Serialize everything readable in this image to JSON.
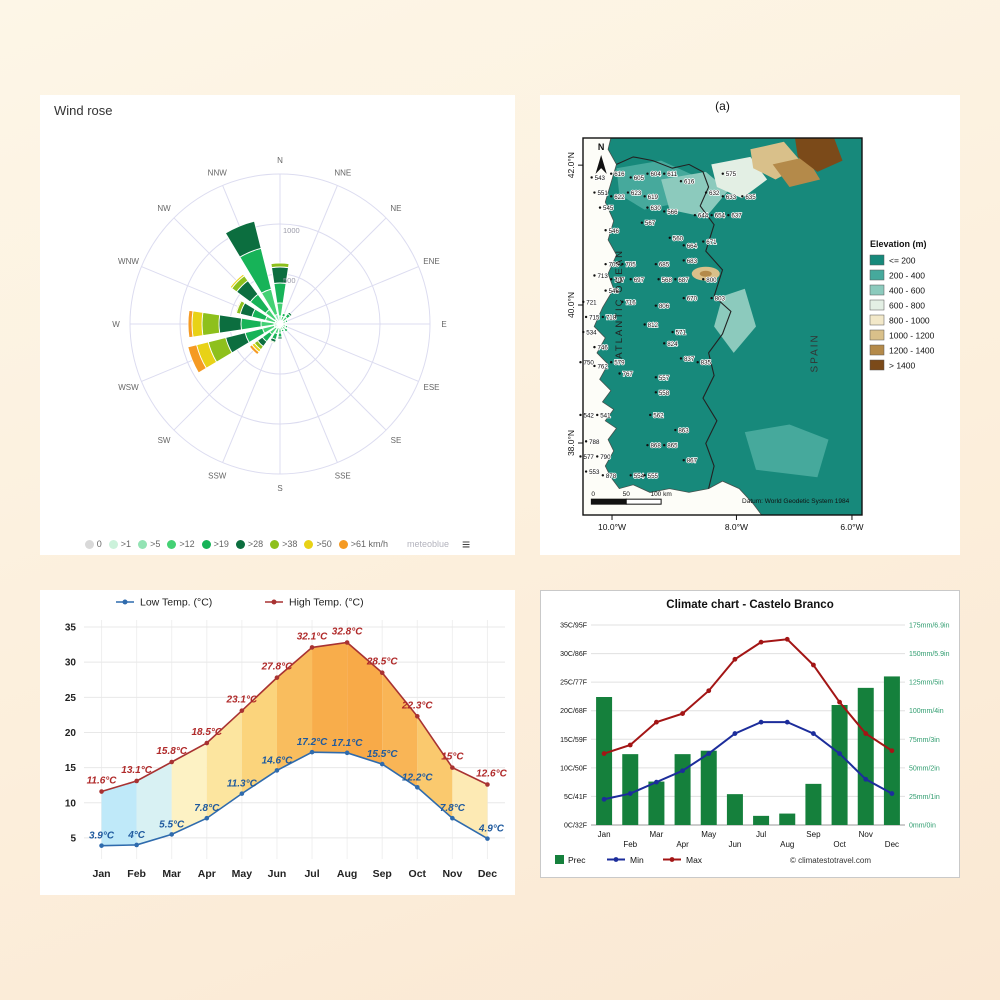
{
  "background": {
    "top": "#fdf6e7",
    "bottom": "#fae8d3"
  },
  "chart_data": [
    {
      "type": "wind-rose",
      "title": "Wind rose",
      "watermark": "meteoblue",
      "menu_icon": "≡",
      "unit": "km/h",
      "directions": [
        "N",
        "NNE",
        "NE",
        "ENE",
        "E",
        "ESE",
        "SE",
        "SSE",
        "S",
        "SSW",
        "SW",
        "WSW",
        "W",
        "WNW",
        "NW",
        "NNW"
      ],
      "rings": [
        500,
        1000
      ],
      "ring_max": 1500,
      "grid_color": "#dcdcf0",
      "speed_classes": [
        {
          "label": "0",
          "color": "#d9d9d9"
        },
        {
          "label": ">1",
          "color": "#ccf2db"
        },
        {
          "label": ">5",
          "color": "#93e3b4"
        },
        {
          "label": ">12",
          "color": "#44d174"
        },
        {
          "label": ">19",
          "color": "#17b358"
        },
        {
          "label": ">28",
          "color": "#0c6e3f"
        },
        {
          "label": ">38",
          "color": "#8ec01c"
        },
        {
          "label": ">50",
          "color": "#e8d216"
        },
        {
          "label": ">61",
          "color": "#f59a23"
        }
      ],
      "petals": [
        {
          "dir": "N",
          "values": [
            0,
            20,
            60,
            130,
            200,
            160,
            40,
            0,
            0
          ]
        },
        {
          "dir": "NNE",
          "values": [
            0,
            10,
            30,
            40,
            30,
            0,
            0,
            0,
            0
          ]
        },
        {
          "dir": "NE",
          "values": [
            0,
            10,
            30,
            50,
            40,
            20,
            0,
            0,
            0
          ]
        },
        {
          "dir": "ENE",
          "values": [
            0,
            10,
            20,
            30,
            20,
            0,
            0,
            0,
            0
          ]
        },
        {
          "dir": "E",
          "values": [
            0,
            10,
            20,
            20,
            10,
            0,
            0,
            0,
            0
          ]
        },
        {
          "dir": "ESE",
          "values": [
            0,
            10,
            20,
            30,
            20,
            0,
            0,
            0,
            0
          ]
        },
        {
          "dir": "SE",
          "values": [
            0,
            10,
            20,
            40,
            30,
            0,
            0,
            0,
            0
          ]
        },
        {
          "dir": "SSE",
          "values": [
            0,
            10,
            20,
            30,
            20,
            0,
            0,
            0,
            0
          ]
        },
        {
          "dir": "S",
          "values": [
            0,
            10,
            30,
            50,
            40,
            20,
            0,
            0,
            0
          ]
        },
        {
          "dir": "SSW",
          "values": [
            0,
            10,
            30,
            60,
            60,
            30,
            10,
            0,
            0
          ]
        },
        {
          "dir": "SW",
          "values": [
            0,
            10,
            40,
            80,
            90,
            60,
            40,
            30,
            30
          ]
        },
        {
          "dir": "WSW",
          "values": [
            0,
            10,
            50,
            120,
            180,
            200,
            180,
            120,
            90
          ]
        },
        {
          "dir": "W",
          "values": [
            0,
            10,
            50,
            130,
            200,
            220,
            170,
            100,
            40
          ]
        },
        {
          "dir": "WNW",
          "values": [
            0,
            10,
            40,
            100,
            140,
            120,
            40,
            10,
            0
          ]
        },
        {
          "dir": "NW",
          "values": [
            0,
            10,
            50,
            120,
            190,
            170,
            60,
            20,
            0
          ]
        },
        {
          "dir": "NNW",
          "values": [
            0,
            20,
            80,
            260,
            420,
            280,
            0,
            0,
            0
          ]
        }
      ]
    },
    {
      "type": "line",
      "categories": [
        "Jan",
        "Feb",
        "Mar",
        "Apr",
        "May",
        "Jun",
        "Jul",
        "Aug",
        "Sep",
        "Oct",
        "Nov",
        "Dec"
      ],
      "yticks": [
        5,
        10,
        15,
        20,
        25,
        30,
        35
      ],
      "ylim": [
        2,
        36
      ],
      "label_suffix": "°C",
      "series": [
        {
          "name": "Low Temp. (°C)",
          "color": "#2f6bad",
          "label_color": "#1f5a9e",
          "values": [
            3.9,
            4,
            5.5,
            7.8,
            11.3,
            14.6,
            17.2,
            17.1,
            15.5,
            12.2,
            7.8,
            4.9
          ]
        },
        {
          "name": "High Temp. (°C)",
          "color": "#a83232",
          "label_color": "#b02a2a",
          "values": [
            11.6,
            13.1,
            15.8,
            18.5,
            23.1,
            27.8,
            32.1,
            32.8,
            28.5,
            22.3,
            15,
            12.6
          ]
        }
      ],
      "band_colors": [
        "#bfe9f9",
        "#d8f1f3",
        "#fdf2c4",
        "#fce59f",
        "#fbd47c",
        "#f9bd5e",
        "#f8ad4b",
        "#f8aa48",
        "#f9b556",
        "#fac96e",
        "#fdeab4",
        "#c4ebfa"
      ]
    },
    {
      "type": "combo",
      "title": "Climate chart - Castelo Branco",
      "categories": [
        "Jan",
        "Feb",
        "Mar",
        "Apr",
        "May",
        "Jun",
        "Jul",
        "Aug",
        "Sep",
        "Oct",
        "Nov",
        "Dec"
      ],
      "left_axis": {
        "ticks": [
          "0C/32F",
          "5C/41F",
          "10C/50F",
          "15C/59F",
          "20C/68F",
          "25C/77F",
          "30C/86F",
          "35C/95F"
        ],
        "min": 0,
        "max": 35,
        "color": "#111111"
      },
      "right_axis": {
        "ticks": [
          "0mm/0in",
          "25mm/1in",
          "50mm/2in",
          "75mm/3in",
          "100mm/4in",
          "125mm/5in",
          "150mm/5.9in",
          "175mm/6.9in"
        ],
        "min": 0,
        "max": 175,
        "color": "#2e9c6e"
      },
      "series": [
        {
          "name": "Prec",
          "type": "bar",
          "color": "#15803c",
          "values": [
            112,
            62,
            38,
            62,
            65,
            27,
            8,
            10,
            36,
            105,
            120,
            130
          ]
        },
        {
          "name": "Min",
          "type": "line",
          "color": "#1c2d9b",
          "values": [
            4.5,
            5.5,
            7.5,
            9.5,
            12.5,
            16,
            18,
            18,
            16,
            12.5,
            8,
            5.5
          ]
        },
        {
          "name": "Max",
          "type": "line",
          "color": "#a31515",
          "values": [
            12.5,
            14,
            18,
            19.5,
            23.5,
            29,
            32,
            32.5,
            28,
            21.5,
            16,
            13
          ]
        }
      ],
      "copyright": "© climatestotravel.com"
    }
  ],
  "map": {
    "title": "(a)",
    "ocean_label": "ATLANTIC OCEAN",
    "country_label": "SPAIN",
    "north_label": "N",
    "lat_ticks": [
      {
        "label": "42.0°N",
        "y": 7.2
      },
      {
        "label": "40.0°N",
        "y": 44.3
      },
      {
        "label": "38.0°N",
        "y": 80.9
      }
    ],
    "lon_ticks": [
      {
        "label": "10.0°W",
        "x": 10.4
      },
      {
        "label": "8.0°W",
        "x": 55.0
      },
      {
        "label": "6.0°W",
        "x": 96.4
      }
    ],
    "scale_labels": [
      "0",
      "50",
      "100 km"
    ],
    "datum": "Datum: World Geodetic System 1984",
    "legend": {
      "title": "Elevation (m)",
      "items": [
        {
          "label": "<= 200",
          "color": "#17897b"
        },
        {
          "label": "200 - 400",
          "color": "#46a99c"
        },
        {
          "label": "400 - 600",
          "color": "#8ccabd"
        },
        {
          "label": "600 - 800",
          "color": "#e3efe4"
        },
        {
          "label": "800 - 1000",
          "color": "#f2e8c9"
        },
        {
          "label": "1000 - 1200",
          "color": "#d9c08a"
        },
        {
          "label": "1200 - 1400",
          "color": "#b48a4a"
        },
        {
          "label": "> 1400",
          "color": "#7b4a19"
        }
      ]
    },
    "stations": [
      [
        "543",
        4,
        11
      ],
      [
        "616",
        11,
        10
      ],
      [
        "605",
        18,
        11
      ],
      [
        "604",
        24,
        10
      ],
      [
        "611",
        30,
        10
      ],
      [
        "616",
        36,
        12
      ],
      [
        "575",
        51,
        10
      ],
      [
        "551",
        5,
        15
      ],
      [
        "622",
        11,
        16
      ],
      [
        "623",
        17,
        15
      ],
      [
        "619",
        23,
        16
      ],
      [
        "632",
        45,
        15
      ],
      [
        "633",
        51,
        16
      ],
      [
        "635",
        58,
        16
      ],
      [
        "545",
        7,
        19
      ],
      [
        "630",
        24,
        19
      ],
      [
        "566",
        30,
        20
      ],
      [
        "644",
        41,
        21
      ],
      [
        "654",
        47,
        21
      ],
      [
        "637",
        53,
        21
      ],
      [
        "567",
        22,
        23
      ],
      [
        "546",
        9,
        25
      ],
      [
        "560",
        32,
        27
      ],
      [
        "664",
        37,
        29
      ],
      [
        "671",
        44,
        28
      ],
      [
        "703",
        9,
        34
      ],
      [
        "705",
        15,
        34
      ],
      [
        "685",
        27,
        34
      ],
      [
        "683",
        37,
        33
      ],
      [
        "713",
        5,
        37
      ],
      [
        "707",
        11,
        38
      ],
      [
        "697",
        18,
        38
      ],
      [
        "568",
        28,
        38
      ],
      [
        "687",
        34,
        38
      ],
      [
        "800",
        44,
        38
      ],
      [
        "548",
        9,
        41
      ],
      [
        "721",
        1,
        44
      ],
      [
        "716",
        15,
        44
      ],
      [
        "806",
        27,
        45
      ],
      [
        "670",
        37,
        43
      ],
      [
        "803",
        47,
        43
      ],
      [
        "715",
        2,
        48
      ],
      [
        "718",
        8,
        48
      ],
      [
        "812",
        23,
        50
      ],
      [
        "534",
        1,
        52
      ],
      [
        "571",
        33,
        52
      ],
      [
        "746",
        5,
        56
      ],
      [
        "824",
        30,
        55
      ],
      [
        "750",
        0,
        60
      ],
      [
        "762",
        5,
        61
      ],
      [
        "579",
        11,
        60
      ],
      [
        "837",
        36,
        59
      ],
      [
        "835",
        42,
        60
      ],
      [
        "767",
        14,
        63
      ],
      [
        "557",
        27,
        64
      ],
      [
        "558",
        27,
        68
      ],
      [
        "542",
        0,
        74
      ],
      [
        "541",
        6,
        74
      ],
      [
        "562",
        25,
        74
      ],
      [
        "863",
        34,
        78
      ],
      [
        "788",
        2,
        81
      ],
      [
        "868",
        24,
        82
      ],
      [
        "865",
        30,
        82
      ],
      [
        "577",
        0,
        85
      ],
      [
        "790",
        6,
        85
      ],
      [
        "867",
        37,
        86
      ],
      [
        "553",
        2,
        89
      ],
      [
        "878",
        8,
        90
      ],
      [
        "554",
        18,
        90
      ],
      [
        "555",
        23,
        90
      ]
    ]
  }
}
